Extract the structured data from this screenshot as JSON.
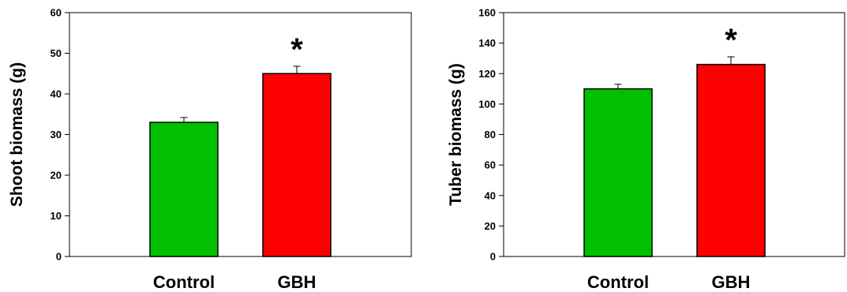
{
  "chart_data": [
    {
      "type": "bar",
      "categories": [
        "Control",
        "GBH"
      ],
      "values": [
        33,
        45
      ],
      "errors": [
        1.2,
        1.8
      ],
      "colors": [
        "#00c000",
        "#ff0000"
      ],
      "significance": [
        "",
        "*"
      ],
      "ylabel": "Shoot biomass (g)",
      "xlabel": "",
      "ylim": [
        0,
        60
      ],
      "yticks": [
        "0",
        "10",
        "20",
        "30",
        "40",
        "50",
        "60"
      ],
      "grid": false
    },
    {
      "type": "bar",
      "categories": [
        "Control",
        "GBH"
      ],
      "values": [
        110,
        126
      ],
      "errors": [
        3,
        5
      ],
      "colors": [
        "#00c000",
        "#ff0000"
      ],
      "significance": [
        "",
        "*"
      ],
      "ylabel": "Tuber biomass (g)",
      "xlabel": "",
      "ylim": [
        0,
        160
      ],
      "yticks": [
        "0",
        "20",
        "40",
        "60",
        "80",
        "100",
        "120",
        "140",
        "160"
      ],
      "grid": false
    }
  ]
}
